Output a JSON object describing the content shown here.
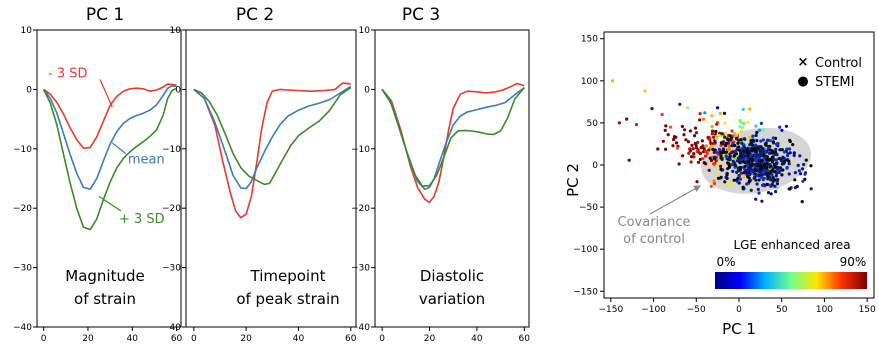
{
  "colors": {
    "minus_sd": "#e8392c",
    "mean": "#3c7bbd",
    "plus_sd": "#3b8a2a",
    "control": "#141414",
    "stemi_marker": "#7fe89a",
    "covariance": "#c8c8c8",
    "cov_text": "#888888"
  },
  "chart_data": [
    {
      "type": "line",
      "title": "PC 1",
      "description_lines": [
        "Magnitude",
        "of strain"
      ],
      "xlim": [
        -3,
        62
      ],
      "ylim": [
        -40,
        10
      ],
      "xticks": [
        0,
        20,
        40,
        60
      ],
      "yticks": [
        10,
        0,
        -10,
        -20,
        -30,
        -40
      ],
      "annotations": [
        {
          "text": "- 3 SD",
          "series": "minus_sd",
          "x": 2,
          "y": 2,
          "arrow_to": [
            31,
            -3
          ]
        },
        {
          "text": "mean",
          "series": "mean",
          "x": 38,
          "y": -12.5,
          "arrow_to": [
            31,
            -9
          ]
        },
        {
          "text": "+ 3 SD",
          "series": "plus_sd",
          "x": 34,
          "y": -22.5,
          "arrow_to": [
            25,
            -18
          ]
        }
      ],
      "series": [
        {
          "key": "minus_sd",
          "x": [
            0,
            3,
            6,
            9,
            12,
            15,
            18,
            21,
            24,
            27,
            30,
            33,
            36,
            39,
            42,
            45,
            48,
            51,
            54,
            56,
            58,
            60
          ],
          "y": [
            0,
            -0.8,
            -2.2,
            -4.2,
            -6.5,
            -8.5,
            -9.9,
            -9.8,
            -8,
            -5.3,
            -2.7,
            -1.2,
            -0.3,
            0.1,
            0.2,
            0.1,
            -0.3,
            -0.1,
            0.4,
            0.9,
            0.8,
            0.7
          ]
        },
        {
          "key": "mean",
          "x": [
            0,
            3,
            6,
            9,
            12,
            15,
            18,
            21,
            24,
            27,
            30,
            33,
            36,
            39,
            42,
            45,
            48,
            51,
            54,
            56,
            58,
            60
          ],
          "y": [
            0,
            -1.5,
            -4,
            -7.5,
            -11,
            -14.2,
            -16.5,
            -16.8,
            -15,
            -12,
            -9.2,
            -7.1,
            -5.7,
            -4.9,
            -4.4,
            -4,
            -3.5,
            -2.6,
            -1,
            0.2,
            0.6,
            0.5
          ]
        },
        {
          "key": "plus_sd",
          "x": [
            0,
            3,
            6,
            9,
            12,
            15,
            18,
            21,
            24,
            27,
            30,
            33,
            36,
            39,
            42,
            45,
            48,
            51,
            54,
            56,
            58,
            60
          ],
          "y": [
            0,
            -2.3,
            -6,
            -11,
            -15.8,
            -20.1,
            -23.2,
            -23.6,
            -21.8,
            -18.5,
            -15.6,
            -13.2,
            -11.6,
            -10.5,
            -9.6,
            -8.8,
            -7.9,
            -6.8,
            -4.3,
            -1.5,
            -0.2,
            0.2
          ]
        }
      ]
    },
    {
      "type": "line",
      "title": "PC 2",
      "description_lines": [
        "Timepoint",
        "of peak strain"
      ],
      "xlim": [
        -3,
        62
      ],
      "ylim": [
        -40,
        10
      ],
      "xticks": [
        0,
        20,
        40,
        60
      ],
      "yticks": [
        10,
        0,
        -10,
        -20,
        -30,
        -40
      ],
      "series": [
        {
          "key": "minus_sd",
          "x": [
            0,
            4,
            8,
            11,
            14,
            16,
            18,
            20,
            22,
            24,
            26,
            28,
            30,
            33,
            36,
            40,
            45,
            50,
            54,
            57,
            60
          ],
          "y": [
            0,
            -1.5,
            -6,
            -12,
            -17.5,
            -20.5,
            -21.6,
            -21,
            -18,
            -12.5,
            -6.5,
            -2.2,
            -0.3,
            0,
            -0.1,
            -0.2,
            -0.3,
            -0.2,
            0,
            1.1,
            0.9
          ]
        },
        {
          "key": "mean",
          "x": [
            0,
            4,
            8,
            12,
            15,
            18,
            20,
            22,
            24,
            27,
            30,
            33,
            36,
            40,
            44,
            48,
            52,
            56,
            60
          ],
          "y": [
            0,
            -1.5,
            -5.5,
            -10.5,
            -14.5,
            -16.6,
            -16.7,
            -15.5,
            -13.3,
            -10.5,
            -8,
            -5.9,
            -4.5,
            -3.5,
            -2.8,
            -2.3,
            -1.7,
            -0.6,
            0.5
          ]
        },
        {
          "key": "plus_sd",
          "x": [
            0,
            3,
            6,
            9,
            12,
            15,
            18,
            21,
            24,
            27,
            29,
            31,
            34,
            37,
            40,
            44,
            48,
            52,
            56,
            60
          ],
          "y": [
            0,
            -0.6,
            -2.1,
            -4.4,
            -7.5,
            -10.8,
            -13.2,
            -14.6,
            -15.3,
            -16,
            -15.8,
            -14.2,
            -11.8,
            -9.5,
            -7.8,
            -6.5,
            -5.3,
            -3.5,
            -0.9,
            0.3
          ]
        }
      ]
    },
    {
      "type": "line",
      "title": "PC 3",
      "description_lines": [
        "Diastolic",
        "variation"
      ],
      "xlim": [
        -3,
        62
      ],
      "ylim": [
        -40,
        10
      ],
      "xticks": [
        0,
        20,
        40,
        60
      ],
      "yticks": [
        10,
        0,
        -10,
        -20,
        -30,
        -40
      ],
      "series": [
        {
          "key": "minus_sd",
          "x": [
            0,
            4,
            8,
            12,
            15,
            18,
            20,
            22,
            24,
            26,
            28,
            30,
            33,
            36,
            40,
            44,
            48,
            51,
            54,
            57,
            60
          ],
          "y": [
            0,
            -2,
            -7,
            -13,
            -16.5,
            -18.5,
            -19,
            -18,
            -15.5,
            -11.5,
            -7,
            -3.2,
            -0.8,
            -0.3,
            -0.4,
            -0.6,
            -0.4,
            -0.1,
            0.4,
            1,
            0.6
          ]
        },
        {
          "key": "mean",
          "x": [
            0,
            4,
            8,
            12,
            15,
            18,
            20,
            22,
            24,
            27,
            30,
            33,
            36,
            40,
            44,
            48,
            52,
            56,
            60
          ],
          "y": [
            0,
            -2.5,
            -7.5,
            -12.5,
            -15.5,
            -16.8,
            -16.5,
            -15,
            -12.5,
            -9,
            -6,
            -4.5,
            -3.8,
            -3.4,
            -3,
            -2.7,
            -2.2,
            -0.9,
            0.3
          ]
        },
        {
          "key": "plus_sd",
          "x": [
            0,
            3,
            6,
            10,
            14,
            17,
            20,
            23,
            26,
            29,
            32,
            35,
            38,
            41,
            44,
            47,
            50,
            53,
            56,
            60
          ],
          "y": [
            0,
            -1.5,
            -5,
            -10,
            -14.5,
            -16.3,
            -16.2,
            -14.5,
            -11.5,
            -8.2,
            -7,
            -6.9,
            -7,
            -7.2,
            -7.5,
            -7.6,
            -7,
            -4.8,
            -1.6,
            0.3
          ]
        }
      ]
    },
    {
      "type": "scatter",
      "xlabel": "PC 1",
      "ylabel": "PC 2",
      "xlim": [
        -158,
        158
      ],
      "ylim": [
        -158,
        158
      ],
      "xticks": [
        -150,
        -100,
        -50,
        0,
        50,
        100,
        150
      ],
      "yticks": [
        150,
        100,
        50,
        0,
        -50,
        -100,
        -150
      ],
      "legend": {
        "position": "top-right",
        "entries": [
          {
            "marker": "×",
            "label": "Control"
          },
          {
            "marker": "●",
            "label": "STEMI"
          }
        ]
      },
      "covariance_label": [
        "Covariance",
        "of control"
      ],
      "covariance_ellipse": {
        "cx": 20,
        "cy": 5,
        "rx": 65,
        "ry": 38,
        "angle_deg": -10
      },
      "colorbar": {
        "title": "LGE enhanced area",
        "min_label": "0%",
        "max_label": "90%",
        "stops": [
          "#00007f",
          "#0000ff",
          "#00b4ff",
          "#6fff8f",
          "#ffe500",
          "#ff3000",
          "#7f0000"
        ]
      },
      "control_cloud": {
        "n": 520,
        "center": [
          20,
          3
        ],
        "spread": [
          24,
          15
        ]
      },
      "stemi_cloud": {
        "n": 240,
        "center": [
          -20,
          18
        ],
        "spread": [
          32,
          18
        ]
      }
    }
  ]
}
